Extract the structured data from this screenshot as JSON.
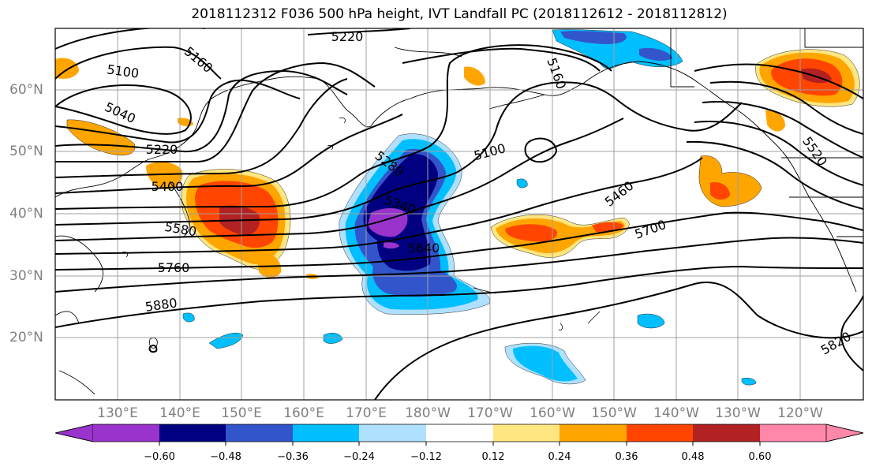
{
  "title": "2018112312 F036 500 hPa height, IVT Landfall PC (2018112612 - 2018112812)",
  "map": {
    "lat_ticks": [
      "60°N",
      "50°N",
      "40°N",
      "30°N",
      "20°N"
    ],
    "lon_ticks": [
      "130°E",
      "140°E",
      "150°E",
      "160°E",
      "170°E",
      "180°W",
      "170°W",
      "160°W",
      "150°W",
      "140°W",
      "130°W",
      "120°W"
    ],
    "contour_labels": [
      "5220",
      "5160",
      "5100",
      "5040",
      "5220",
      "5400",
      "5580",
      "5760",
      "5880",
      "5280",
      "5340",
      "5640",
      "5100",
      "5160",
      "5460",
      "5700",
      "5520",
      "5820"
    ]
  },
  "colorbar": {
    "ticks": [
      "−0.60",
      "−0.48",
      "−0.36",
      "−0.24",
      "−0.12",
      "0.12",
      "0.24",
      "0.36",
      "0.48",
      "0.60"
    ],
    "colors": [
      "#9933cc",
      "#000080",
      "#3355cc",
      "#00bfff",
      "#b0e0ff",
      "#ffffff",
      "#ffe680",
      "#ffa500",
      "#ff4500",
      "#b22222",
      "#ff88aa"
    ]
  },
  "colors": {
    "purple": "#9933cc",
    "navy": "#000080",
    "blue": "#3355cc",
    "cyan": "#00bfff",
    "lightblue": "#b0e0ff",
    "yellow": "#ffe680",
    "orange": "#ffa500",
    "redorange": "#ff4500",
    "darkred": "#b22222",
    "pink": "#ff88aa"
  }
}
